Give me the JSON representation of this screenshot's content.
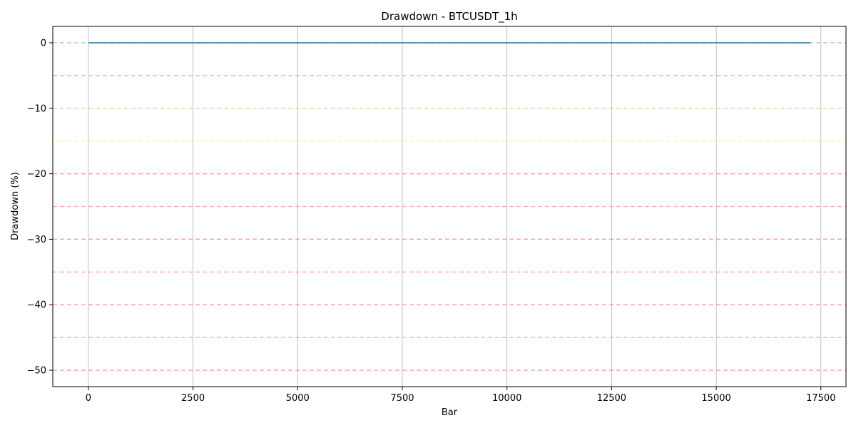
{
  "chart_data": {
    "type": "line",
    "title": "Drawdown - BTCUSDT_1h",
    "xlabel": "Bar",
    "ylabel": "Drawdown (%)",
    "xlim": [
      -850,
      18100
    ],
    "ylim": [
      -52.5,
      2.5
    ],
    "xticks": [
      0,
      2500,
      5000,
      7500,
      10000,
      12500,
      15000,
      17500
    ],
    "xtick_labels": [
      "0",
      "2500",
      "5000",
      "7500",
      "10000",
      "12500",
      "15000",
      "17500"
    ],
    "yticks": [
      0,
      -10,
      -20,
      -30,
      -40,
      -50
    ],
    "ytick_labels": [
      "0",
      "−10",
      "−20",
      "−30",
      "−40",
      "−50"
    ],
    "grid": true,
    "series": [
      {
        "color": "#1f77b4",
        "x": [
          0,
          17250
        ],
        "y": [
          0,
          0
        ]
      }
    ],
    "reference_lines": [
      {
        "y": 0,
        "color": "#2ca02c"
      },
      {
        "y": -5,
        "color": "#2ca02c"
      },
      {
        "y": -10,
        "color": "#8fbc1f"
      },
      {
        "y": -15,
        "color": "#e0e060"
      },
      {
        "y": -20,
        "color": "#e02020"
      },
      {
        "y": -25,
        "color": "#ff4040"
      },
      {
        "y": -30,
        "color": "#e02020"
      },
      {
        "y": -35,
        "color": "#ff4040"
      },
      {
        "y": -40,
        "color": "#e02020"
      },
      {
        "y": -45,
        "color": "#ff4040"
      },
      {
        "y": -50,
        "color": "#e02020"
      }
    ]
  }
}
